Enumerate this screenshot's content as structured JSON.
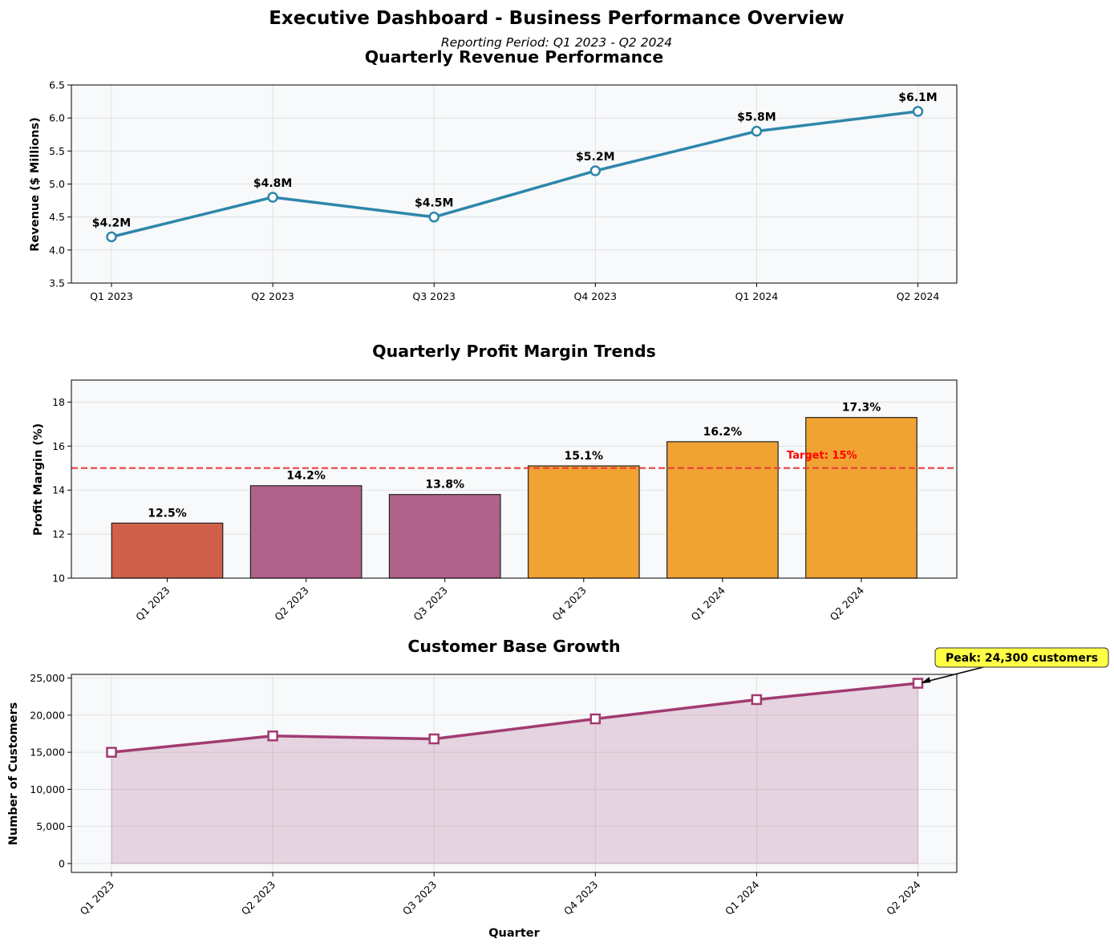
{
  "dashboard": {
    "title": "Executive Dashboard - Business Performance Overview",
    "subtitle": "Reporting Period: Q1 2023 - Q2 2024"
  },
  "chart_data": [
    {
      "type": "line",
      "title": "Quarterly Revenue Performance",
      "xlabel": "",
      "ylabel": "Revenue ($ Millions)",
      "categories": [
        "Q1 2023",
        "Q2 2023",
        "Q3 2023",
        "Q4 2023",
        "Q1 2024",
        "Q2 2024"
      ],
      "values": [
        4.2,
        4.8,
        4.5,
        5.2,
        5.8,
        6.1
      ],
      "data_labels": [
        "$4.2M",
        "$4.8M",
        "$4.5M",
        "$5.2M",
        "$5.8M",
        "$6.1M"
      ],
      "ylim": [
        3.5,
        6.5
      ],
      "yticks": [
        3.5,
        4.0,
        4.5,
        5.0,
        5.5,
        6.0,
        6.5
      ],
      "ytick_labels": [
        "3.5",
        "4.0",
        "4.5",
        "5.0",
        "5.5",
        "6.0",
        "6.5"
      ],
      "grid": true,
      "color": "#2E86AB"
    },
    {
      "type": "bar",
      "title": "Quarterly Profit Margin Trends",
      "xlabel": "",
      "ylabel": "Profit Margin (%)",
      "categories": [
        "Q1 2023",
        "Q2 2023",
        "Q3 2023",
        "Q4 2023",
        "Q1 2024",
        "Q2 2024"
      ],
      "values": [
        12.5,
        14.2,
        13.8,
        15.1,
        16.2,
        17.3
      ],
      "data_labels": [
        "12.5%",
        "14.2%",
        "13.8%",
        "15.1%",
        "16.2%",
        "17.3%"
      ],
      "bar_colors": [
        "#D1604A",
        "#B0628A",
        "#B0628A",
        "#F0A232",
        "#F0A232",
        "#F0A232"
      ],
      "ylim": [
        10,
        19
      ],
      "yticks": [
        10,
        12,
        14,
        16,
        18
      ],
      "ytick_labels": [
        "10",
        "12",
        "14",
        "16",
        "18"
      ],
      "target": {
        "value": 15,
        "label": "Target: 15%",
        "color": "#E83A3A"
      },
      "grid": true
    },
    {
      "type": "area",
      "title": "Customer Base Growth",
      "xlabel": "Quarter",
      "ylabel": "Number of Customers",
      "categories": [
        "Q1 2023",
        "Q2 2023",
        "Q3 2023",
        "Q4 2023",
        "Q1 2024",
        "Q2 2024"
      ],
      "values": [
        15000,
        17200,
        16800,
        19500,
        22100,
        24300
      ],
      "ylim": [
        -1200,
        25500
      ],
      "yticks": [
        0,
        5000,
        10000,
        15000,
        20000,
        25000
      ],
      "ytick_labels": [
        "0",
        "5,000",
        "10,000",
        "15,000",
        "20,000",
        "25,000"
      ],
      "annotation": {
        "text": "Peak: 24,300 customers",
        "category": "Q2 2024",
        "value": 24300,
        "bg": "#FFFF44"
      },
      "grid": true,
      "color": "#A23B72"
    }
  ]
}
